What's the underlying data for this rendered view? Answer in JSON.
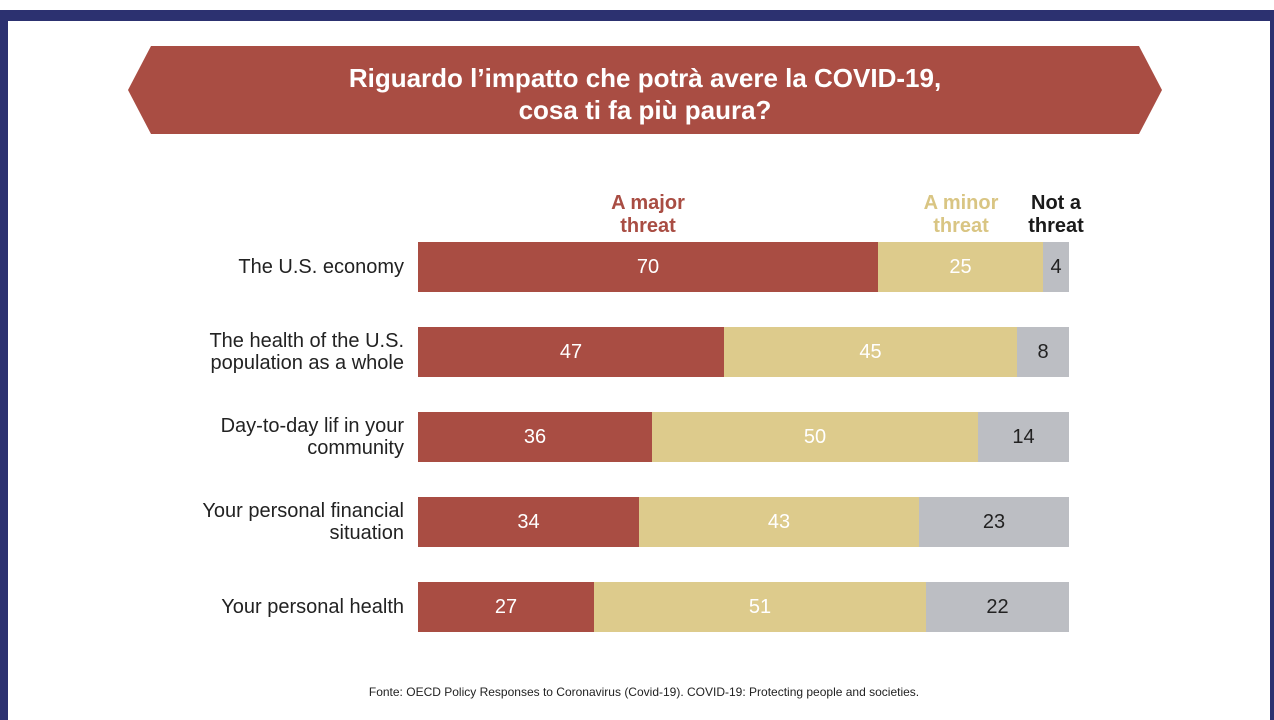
{
  "colors": {
    "frame": "#2c3170",
    "banner": "#a94d43",
    "title_text": "#ffffff",
    "category_text": "#222222",
    "footer_text": "#222222"
  },
  "chart_data": {
    "type": "bar",
    "orientation": "horizontal",
    "stacked": true,
    "title": [
      "Riguardo l’impatto che potrà avere la COVID-19,",
      "cosa ti fa più paura?"
    ],
    "categories": [
      "The U.S. economy",
      "The health of the U.S. population as a whole",
      "Day-to-day lif in your community",
      "Your personal financial situation",
      "Your personal health"
    ],
    "series": [
      {
        "name": "A major threat",
        "values": [
          70,
          47,
          36,
          34,
          27
        ],
        "color": "#a94d43",
        "header_color": "#a94d43",
        "label_color": "#ffffff"
      },
      {
        "name": "A minor threat",
        "values": [
          25,
          45,
          50,
          43,
          51
        ],
        "color": "#ddcb8c",
        "header_color": "#d9c583",
        "label_color": "#ffffff"
      },
      {
        "name": "Not a threat",
        "values": [
          4,
          8,
          14,
          23,
          22
        ],
        "color": "#bcbec3",
        "header_color": "#1a1a1a",
        "label_color": "#222222"
      }
    ],
    "legend_position": "top",
    "grid": false
  },
  "footer": {
    "source": "Fonte: OECD Policy Responses to Coronavirus (Covid-19). COVID-19: Protecting people and societies."
  }
}
